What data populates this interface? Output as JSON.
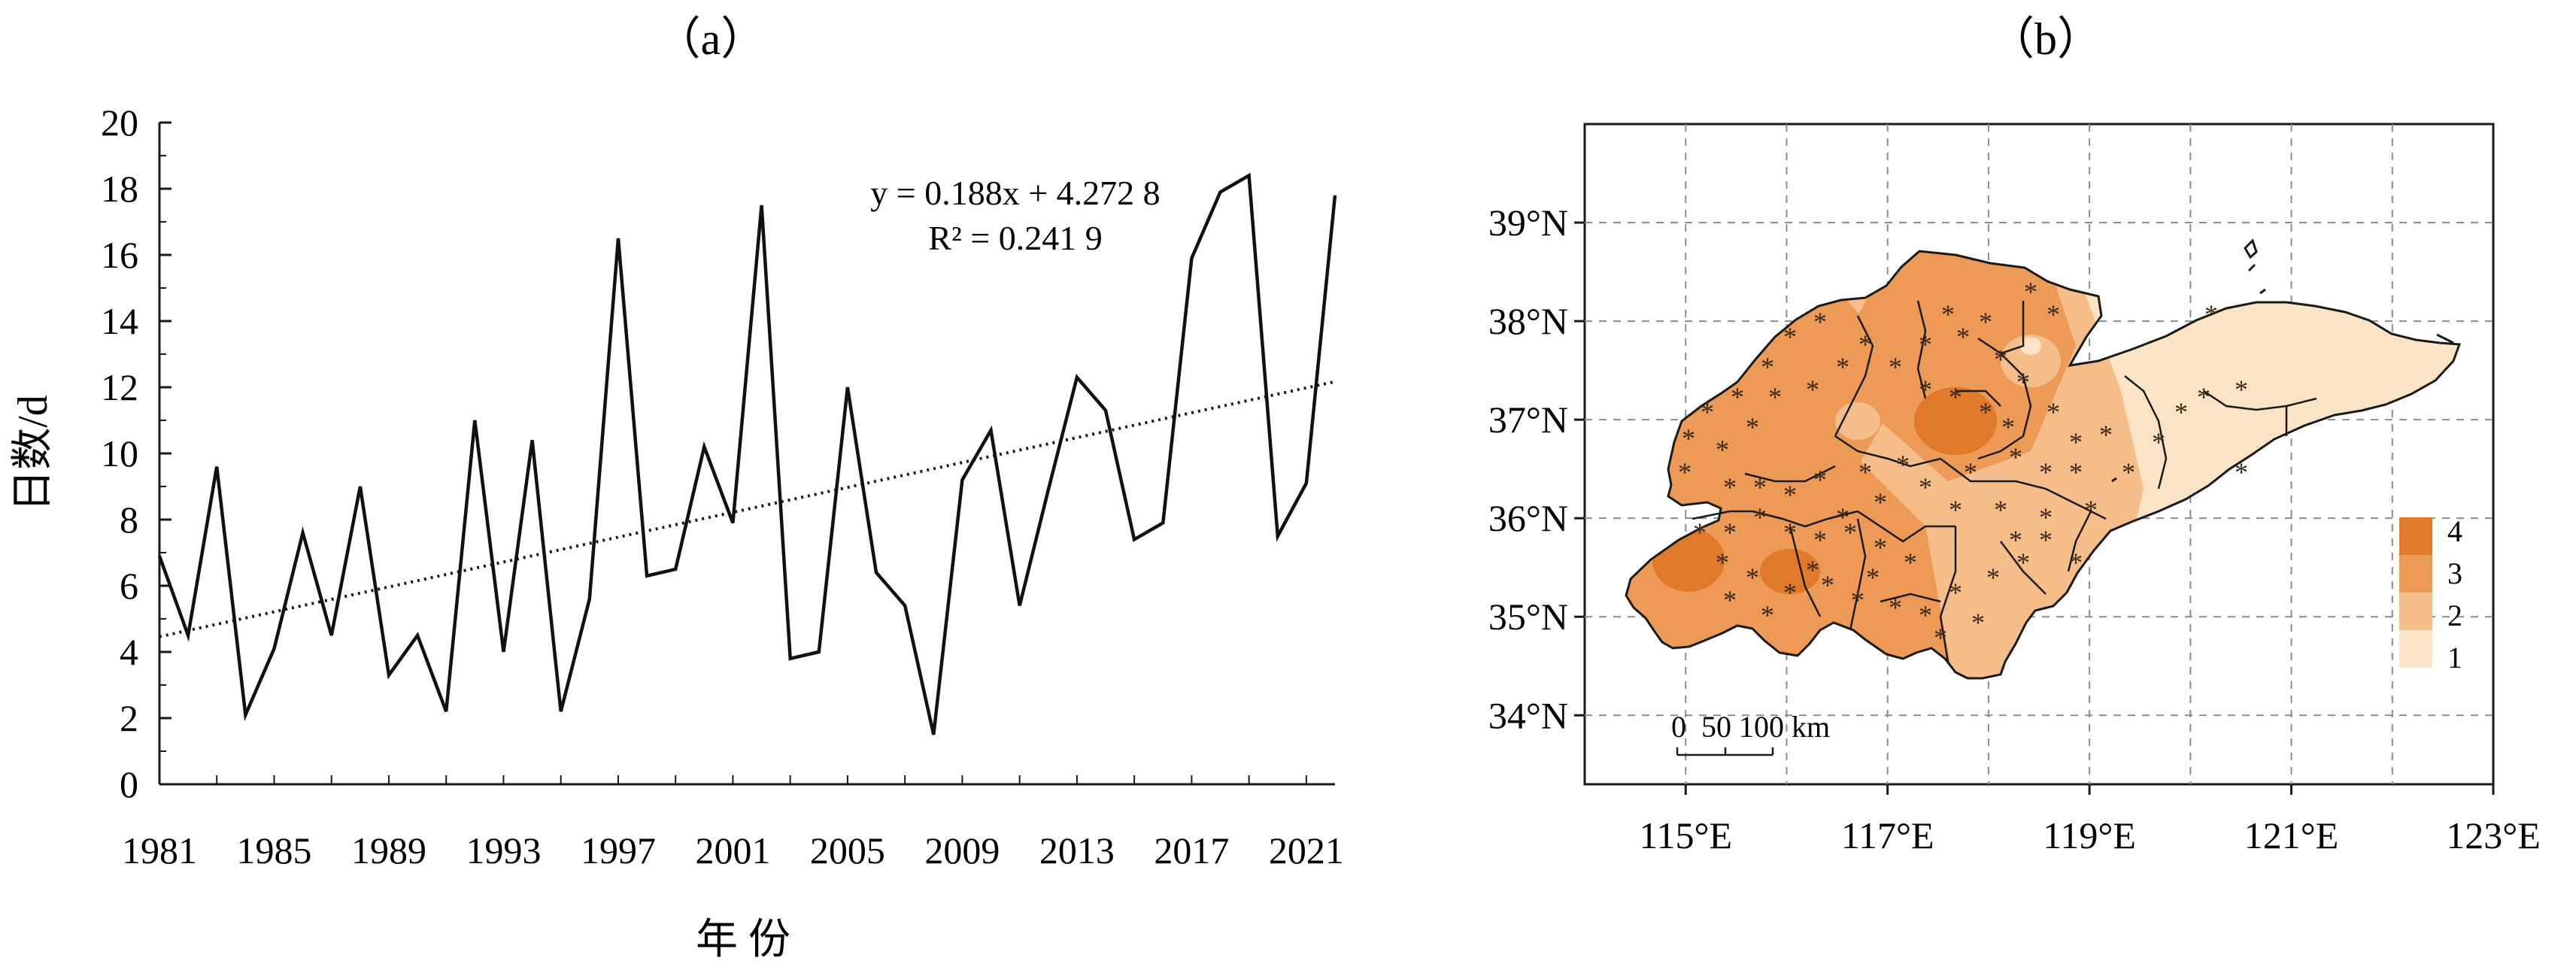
{
  "panels": {
    "a_label": "（a）",
    "b_label": "（b）"
  },
  "chart_data": [
    {
      "type": "line",
      "xlabel": "年 份",
      "ylabel": "日数/d",
      "xlim": [
        1981,
        2021
      ],
      "ylim": [
        0,
        20
      ],
      "xticks": [
        "1981",
        "1985",
        "1989",
        "1993",
        "1997",
        "2001",
        "2005",
        "2009",
        "2013",
        "2017",
        "2021"
      ],
      "yticks": [
        "0",
        "2",
        "4",
        "6",
        "8",
        "10",
        "12",
        "14",
        "16",
        "18",
        "20"
      ],
      "x": [
        1981,
        1982,
        1983,
        1984,
        1985,
        1986,
        1987,
        1988,
        1989,
        1990,
        1991,
        1992,
        1993,
        1994,
        1995,
        1996,
        1997,
        1998,
        1999,
        2000,
        2001,
        2002,
        2003,
        2004,
        2005,
        2006,
        2007,
        2008,
        2009,
        2010,
        2011,
        2012,
        2013,
        2014,
        2015,
        2016,
        2017,
        2018,
        2019,
        2020,
        2021,
        2022
      ],
      "series": [
        {
          "values": [
            6.9,
            4.5,
            9.6,
            2.1,
            4.1,
            7.6,
            4.5,
            9.0,
            3.3,
            4.5,
            2.2,
            11.0,
            4.0,
            10.4,
            2.2,
            5.6,
            16.5,
            6.3,
            6.5,
            10.2,
            7.9,
            17.5,
            3.8,
            4.0,
            12.0,
            6.4,
            5.4,
            1.5,
            9.2,
            10.7,
            5.4,
            8.9,
            12.3,
            11.3,
            7.4,
            7.9,
            15.9,
            17.9,
            18.4,
            7.5,
            9.1,
            17.8
          ]
        }
      ],
      "trendline": {
        "style": "dotted",
        "slope": 0.188,
        "intercept": 4.2728,
        "equation_label": "y = 0.188x + 4.272 8",
        "r2_label": "R² = 0.241 9"
      },
      "grid": false
    },
    {
      "type": "heatmap",
      "xticks": [
        "115°E",
        "117°E",
        "119°E",
        "121°E",
        "123°E"
      ],
      "yticks": [
        "39°N",
        "38°N",
        "37°N",
        "36°N",
        "35°N",
        "34°N"
      ],
      "xlim": [
        114,
        123
      ],
      "ylim": [
        33.3,
        40
      ],
      "grid": true,
      "legend_placement": "bottom-right",
      "legend_labels": [
        "4",
        "3",
        "2",
        "1"
      ],
      "legend_colors": [
        "#e07a2a",
        "#ec9a55",
        "#f4bd89",
        "#fbe3c5"
      ],
      "scale_bar_label": "0  50 100 km",
      "significance_marker": "*"
    }
  ],
  "colors": {
    "line": "#111111",
    "grid": "#8c8c8c",
    "map_outline": "#1a1a1a"
  }
}
